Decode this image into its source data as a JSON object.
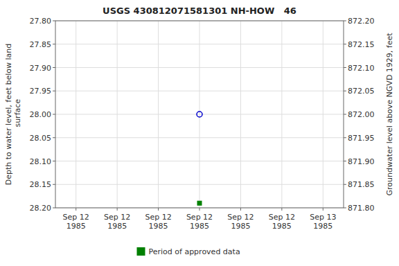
{
  "chart_data": {
    "type": "scatter",
    "title": "USGS 430812071581301 NH-HOW   46",
    "y_label": "Depth to water level, feet below land\n surface",
    "y2_label": "Groundwater level above NGVD 1929, feet",
    "categories": [
      "Sep 12\n1985",
      "Sep 12\n1985",
      "Sep 12\n1985",
      "Sep 12\n1985",
      "Sep 12\n1985",
      "Sep 12\n1985",
      "Sep 13\n1985"
    ],
    "series": [
      {
        "color": "#0000cc",
        "marker": "open-circle",
        "line_style": "none",
        "values": [
          null,
          null,
          null,
          28.0,
          null,
          null,
          null
        ]
      },
      {
        "name": "Period of approved data",
        "color": "#008000",
        "marker": "square",
        "line_style": "none",
        "values": [
          null,
          null,
          null,
          28.19,
          null,
          null,
          null
        ]
      }
    ],
    "ylim": [
      28.2,
      27.8
    ],
    "yticks": [
      {
        "value": 27.8,
        "label": "27.80"
      },
      {
        "value": 27.85,
        "label": "27.85"
      },
      {
        "value": 27.9,
        "label": "27.90"
      },
      {
        "value": 27.95,
        "label": "27.95"
      },
      {
        "value": 28.0,
        "label": "28.00"
      },
      {
        "value": 28.05,
        "label": "28.05"
      },
      {
        "value": 28.1,
        "label": "28.10"
      },
      {
        "value": 28.15,
        "label": "28.15"
      },
      {
        "value": 28.2,
        "label": "28.20"
      }
    ],
    "y2lim": [
      871.8,
      872.2
    ],
    "y2ticks": [
      {
        "value": 872.2,
        "label": "872.20"
      },
      {
        "value": 872.15,
        "label": "872.15"
      },
      {
        "value": 872.1,
        "label": "872.10"
      },
      {
        "value": 872.05,
        "label": "872.05"
      },
      {
        "value": 872.0,
        "label": "872.00"
      },
      {
        "value": 871.95,
        "label": "871.95"
      },
      {
        "value": 871.9,
        "label": "871.90"
      },
      {
        "value": 871.85,
        "label": "871.85"
      },
      {
        "value": 871.8,
        "label": "871.80"
      }
    ],
    "grid": true,
    "legend": "bottom"
  }
}
